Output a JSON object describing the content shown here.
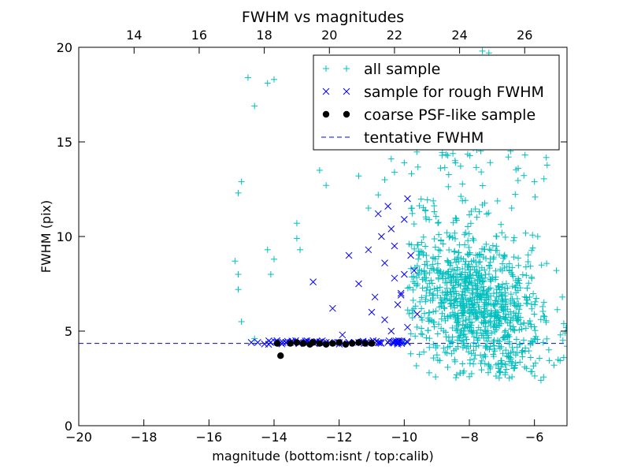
{
  "chart_data": {
    "type": "scatter",
    "title": "FWHM vs magnitudes",
    "xlabel": "magnitude (bottom:isnt / top:calib)",
    "ylabel": "FWHM (pix)",
    "xlim": [
      -20,
      -5
    ],
    "ylim": [
      0,
      20
    ],
    "xticks": [
      -20,
      -18,
      -16,
      -14,
      -12,
      -10,
      -8,
      -6
    ],
    "xtick_labels": [
      "−20",
      "−18",
      "−16",
      "−14",
      "−12",
      "−10",
      "−8",
      "−6"
    ],
    "yticks": [
      0,
      5,
      10,
      15,
      20
    ],
    "ytick_labels": [
      "0",
      "5",
      "10",
      "15",
      "20"
    ],
    "top_axis": {
      "label_values": [
        14,
        16,
        18,
        20,
        22,
        24,
        26
      ],
      "bottom_axis_equivalent": [
        -18.3,
        -16.3,
        -14.3,
        -12.3,
        -10.3,
        -8.3,
        -6.3
      ]
    },
    "grid": false,
    "legend_position": "top-right",
    "series": [
      {
        "name": "all sample",
        "marker": "+",
        "color": "#00bfbf",
        "points": [
          [
            -14.8,
            18.4
          ],
          [
            -14.6,
            16.9
          ],
          [
            -14.2,
            18.1
          ],
          [
            -14.0,
            18.3
          ],
          [
            -15.0,
            12.9
          ],
          [
            -15.1,
            12.3
          ],
          [
            -15.2,
            8.7
          ],
          [
            -15.1,
            8.0
          ],
          [
            -15.1,
            7.2
          ],
          [
            -14.2,
            9.3
          ],
          [
            -14.0,
            8.8
          ],
          [
            -14.1,
            8.0
          ],
          [
            -13.3,
            10.7
          ],
          [
            -13.3,
            9.9
          ],
          [
            -13.2,
            9.3
          ],
          [
            -12.6,
            13.5
          ],
          [
            -12.4,
            12.7
          ],
          [
            -11.4,
            13.2
          ],
          [
            -11.1,
            11.5
          ],
          [
            -10.8,
            12.2
          ],
          [
            -10.6,
            13.0
          ],
          [
            -10.3,
            13.4
          ],
          [
            -10.0,
            13.9
          ],
          [
            -10.4,
            14.1
          ],
          [
            -9.0,
            16.8
          ],
          [
            -8.8,
            16.4
          ],
          [
            -8.5,
            17.5
          ],
          [
            -8.2,
            18.7
          ],
          [
            -8.0,
            19.2
          ],
          [
            -7.7,
            19.3
          ],
          [
            -7.6,
            19.8
          ],
          [
            -7.4,
            19.7
          ],
          [
            -7.1,
            16.1
          ],
          [
            -6.8,
            14.2
          ],
          [
            -6.5,
            13.6
          ],
          [
            -6.0,
            12.9
          ],
          [
            -5.9,
            10.0
          ],
          [
            -6.7,
            11.5
          ],
          [
            -7.0,
            10.2
          ],
          [
            -15.0,
            5.5
          ],
          [
            -14.6,
            4.6
          ],
          [
            -10.0,
            4.4
          ],
          [
            -9.8,
            3.8
          ],
          [
            -9.4,
            3.9
          ],
          [
            -6.9,
            2.8
          ],
          [
            -6.3,
            3.1
          ],
          [
            -5.8,
            2.4
          ],
          [
            -5.4,
            3.2
          ],
          [
            -5.1,
            3.6
          ],
          [
            -5.2,
            4.8
          ],
          [
            -5.1,
            5.4
          ],
          [
            -5.0,
            4.2
          ]
        ]
      },
      {
        "name": "sample for rough FWHM",
        "marker": "x",
        "color": "#0000ff",
        "points": [
          [
            -14.7,
            4.4
          ],
          [
            -14.5,
            4.4
          ],
          [
            -14.1,
            4.4
          ],
          [
            -13.8,
            4.4
          ],
          [
            -13.5,
            4.4
          ],
          [
            -13.2,
            4.4
          ],
          [
            -12.9,
            4.4
          ],
          [
            -12.6,
            4.4
          ],
          [
            -12.3,
            4.4
          ],
          [
            -12.0,
            4.4
          ],
          [
            -11.7,
            4.4
          ],
          [
            -11.4,
            4.4
          ],
          [
            -11.1,
            4.4
          ],
          [
            -10.8,
            4.4
          ],
          [
            -10.5,
            4.4
          ],
          [
            -10.2,
            4.4
          ],
          [
            -9.9,
            4.4
          ],
          [
            -12.8,
            7.6
          ],
          [
            -12.2,
            6.2
          ],
          [
            -11.9,
            4.8
          ],
          [
            -11.7,
            9.0
          ],
          [
            -11.4,
            7.5
          ],
          [
            -11.1,
            9.3
          ],
          [
            -11.0,
            6.0
          ],
          [
            -10.9,
            6.8
          ],
          [
            -10.8,
            11.2
          ],
          [
            -10.7,
            10.0
          ],
          [
            -10.6,
            8.6
          ],
          [
            -10.5,
            11.6
          ],
          [
            -10.4,
            10.4
          ],
          [
            -10.3,
            9.5
          ],
          [
            -10.2,
            6.4
          ],
          [
            -10.1,
            7.0
          ],
          [
            -10.0,
            8.0
          ],
          [
            -10.0,
            10.9
          ],
          [
            -9.9,
            12.0
          ],
          [
            -9.8,
            9.0
          ],
          [
            -9.7,
            8.2
          ],
          [
            -9.6,
            5.9
          ],
          [
            -10.6,
            5.6
          ],
          [
            -10.4,
            5.0
          ],
          [
            -10.1,
            6.9
          ],
          [
            -10.3,
            7.8
          ],
          [
            -9.9,
            5.2
          ]
        ]
      },
      {
        "name": "coarse PSF-like sample",
        "marker": "o",
        "color": "#000000",
        "points": [
          [
            -13.9,
            4.35
          ],
          [
            -13.8,
            3.7
          ],
          [
            -13.5,
            4.35
          ],
          [
            -13.3,
            4.4
          ],
          [
            -13.1,
            4.35
          ],
          [
            -12.9,
            4.3
          ],
          [
            -12.8,
            4.4
          ],
          [
            -12.6,
            4.35
          ],
          [
            -12.4,
            4.3
          ],
          [
            -12.2,
            4.35
          ],
          [
            -12.0,
            4.4
          ],
          [
            -11.8,
            4.3
          ],
          [
            -11.6,
            4.35
          ],
          [
            -11.4,
            4.4
          ],
          [
            -11.2,
            4.35
          ],
          [
            -11.0,
            4.35
          ]
        ]
      },
      {
        "name": "tentative FWHM",
        "marker": "dashed-line",
        "color": "#0000ff",
        "y_value": 4.35
      }
    ]
  }
}
